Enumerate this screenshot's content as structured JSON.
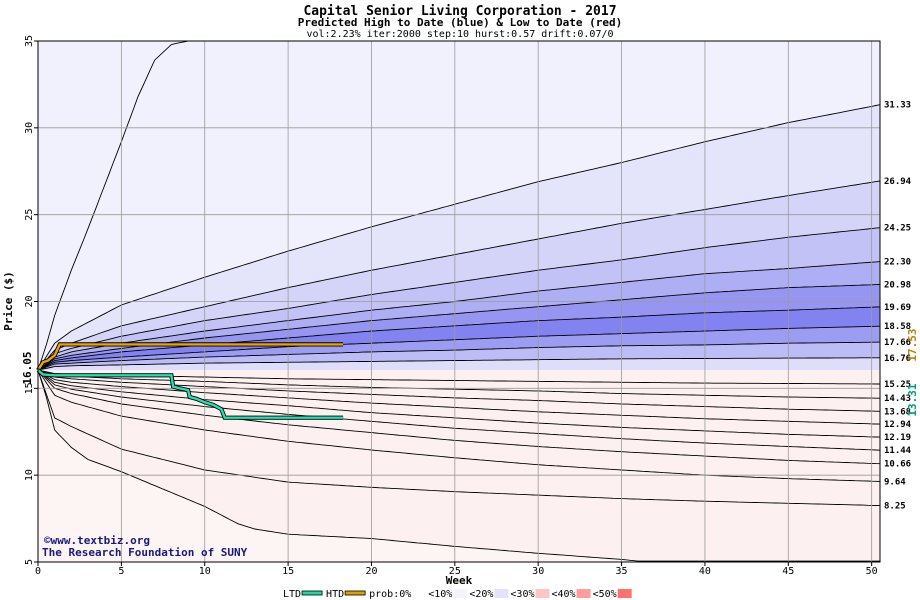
{
  "chart_data": {
    "type": "area",
    "title": "Capital Senior Living Corporation - 2017",
    "subtitle": "Predicted High to Date (blue) &  Low to Date (red)",
    "params": "vol:2.23% iter:2000 step:10 hurst:0.57 drift:0.07/0",
    "xlabel": "Week",
    "ylabel": "Price ($)",
    "xlim": [
      0,
      50.5
    ],
    "ylim": [
      5,
      35
    ],
    "x_ticks": [
      0,
      5,
      10,
      15,
      20,
      25,
      30,
      35,
      40,
      45,
      50
    ],
    "y_ticks": [
      5,
      10,
      15,
      20,
      25,
      30,
      35
    ],
    "grid": true,
    "start_price": 16.05,
    "start_label": "16.05",
    "high_label": "17.53",
    "low_label": "13.31",
    "high_color": "#b8860b",
    "low_color": "#009e80",
    "upper_curves": [
      {
        "label": "",
        "points": [
          [
            0,
            16.05
          ],
          [
            0.5,
            17.5
          ],
          [
            1,
            19.2
          ],
          [
            2,
            21.8
          ],
          [
            3,
            24.2
          ],
          [
            4,
            26.7
          ],
          [
            5,
            29.2
          ],
          [
            6,
            31.8
          ],
          [
            7,
            33.9
          ],
          [
            8,
            34.8
          ],
          [
            9,
            35
          ]
        ]
      },
      {
        "label": "31.33",
        "points": [
          [
            0,
            16.05
          ],
          [
            1,
            17.6
          ],
          [
            2,
            18.3
          ],
          [
            5,
            19.8
          ],
          [
            10,
            21.4
          ],
          [
            15,
            22.9
          ],
          [
            20,
            24.3
          ],
          [
            25,
            25.6
          ],
          [
            30,
            26.9
          ],
          [
            35,
            28.0
          ],
          [
            40,
            29.2
          ],
          [
            45,
            30.3
          ],
          [
            50.5,
            31.33
          ]
        ]
      },
      {
        "label": "26.94",
        "points": [
          [
            0,
            16.05
          ],
          [
            1,
            17.2
          ],
          [
            2,
            17.6
          ],
          [
            5,
            18.6
          ],
          [
            10,
            19.7
          ],
          [
            15,
            20.8
          ],
          [
            20,
            21.8
          ],
          [
            25,
            22.7
          ],
          [
            30,
            23.6
          ],
          [
            35,
            24.5
          ],
          [
            40,
            25.3
          ],
          [
            45,
            26.1
          ],
          [
            50.5,
            26.94
          ]
        ]
      },
      {
        "label": "24.25",
        "points": [
          [
            0,
            16.05
          ],
          [
            1,
            17.0
          ],
          [
            2,
            17.3
          ],
          [
            5,
            18.0
          ],
          [
            10,
            18.9
          ],
          [
            15,
            19.6
          ],
          [
            20,
            20.4
          ],
          [
            25,
            21.1
          ],
          [
            30,
            21.8
          ],
          [
            35,
            22.4
          ],
          [
            40,
            23.1
          ],
          [
            45,
            23.7
          ],
          [
            50.5,
            24.25
          ]
        ]
      },
      {
        "label": "22.30",
        "points": [
          [
            0,
            16.05
          ],
          [
            1,
            16.8
          ],
          [
            2,
            17.1
          ],
          [
            5,
            17.6
          ],
          [
            10,
            18.3
          ],
          [
            15,
            18.9
          ],
          [
            20,
            19.5
          ],
          [
            25,
            20.0
          ],
          [
            30,
            20.6
          ],
          [
            35,
            21.1
          ],
          [
            40,
            21.6
          ],
          [
            45,
            21.9
          ],
          [
            50.5,
            22.3
          ]
        ]
      },
      {
        "label": "20.98",
        "points": [
          [
            0,
            16.05
          ],
          [
            1,
            16.7
          ],
          [
            2,
            16.9
          ],
          [
            5,
            17.3
          ],
          [
            10,
            17.9
          ],
          [
            15,
            18.4
          ],
          [
            20,
            18.9
          ],
          [
            25,
            19.3
          ],
          [
            30,
            19.7
          ],
          [
            35,
            20.1
          ],
          [
            40,
            20.5
          ],
          [
            45,
            20.8
          ],
          [
            50.5,
            20.98
          ]
        ]
      },
      {
        "label": "19.69",
        "points": [
          [
            0,
            16.05
          ],
          [
            1,
            16.6
          ],
          [
            2,
            16.75
          ],
          [
            5,
            17.1
          ],
          [
            10,
            17.5
          ],
          [
            15,
            17.9
          ],
          [
            20,
            18.3
          ],
          [
            25,
            18.6
          ],
          [
            30,
            18.9
          ],
          [
            35,
            19.1
          ],
          [
            40,
            19.35
          ],
          [
            45,
            19.5
          ],
          [
            50.5,
            19.69
          ]
        ]
      },
      {
        "label": "18.58",
        "points": [
          [
            0,
            16.05
          ],
          [
            1,
            16.5
          ],
          [
            2,
            16.6
          ],
          [
            5,
            16.8
          ],
          [
            10,
            17.1
          ],
          [
            15,
            17.4
          ],
          [
            20,
            17.6
          ],
          [
            25,
            17.8
          ],
          [
            30,
            18.0
          ],
          [
            35,
            18.15
          ],
          [
            40,
            18.3
          ],
          [
            45,
            18.45
          ],
          [
            50.5,
            18.58
          ]
        ]
      },
      {
        "label": "17.66",
        "points": [
          [
            0,
            16.05
          ],
          [
            1,
            16.4
          ],
          [
            2,
            16.45
          ],
          [
            5,
            16.6
          ],
          [
            10,
            16.8
          ],
          [
            15,
            16.95
          ],
          [
            20,
            17.1
          ],
          [
            25,
            17.2
          ],
          [
            30,
            17.35
          ],
          [
            35,
            17.45
          ],
          [
            40,
            17.5
          ],
          [
            45,
            17.6
          ],
          [
            50.5,
            17.66
          ]
        ]
      },
      {
        "label": "16.76",
        "points": [
          [
            0,
            16.05
          ],
          [
            1,
            16.25
          ],
          [
            2,
            16.3
          ],
          [
            5,
            16.35
          ],
          [
            10,
            16.45
          ],
          [
            15,
            16.5
          ],
          [
            20,
            16.55
          ],
          [
            25,
            16.6
          ],
          [
            30,
            16.65
          ],
          [
            35,
            16.7
          ],
          [
            40,
            16.72
          ],
          [
            45,
            16.74
          ],
          [
            50.5,
            16.76
          ]
        ]
      }
    ],
    "lower_curves": [
      {
        "label": "15.25",
        "points": [
          [
            0,
            16.05
          ],
          [
            1,
            15.85
          ],
          [
            2,
            15.8
          ],
          [
            5,
            15.75
          ],
          [
            10,
            15.65
          ],
          [
            15,
            15.55
          ],
          [
            20,
            15.5
          ],
          [
            25,
            15.45
          ],
          [
            30,
            15.4
          ],
          [
            35,
            15.35
          ],
          [
            40,
            15.3
          ],
          [
            45,
            15.28
          ],
          [
            50.5,
            15.25
          ]
        ]
      },
      {
        "label": "14.43",
        "points": [
          [
            0,
            16.05
          ],
          [
            1,
            15.75
          ],
          [
            2,
            15.7
          ],
          [
            5,
            15.55
          ],
          [
            10,
            15.4
          ],
          [
            15,
            15.2
          ],
          [
            20,
            15.05
          ],
          [
            25,
            14.95
          ],
          [
            30,
            14.85
          ],
          [
            35,
            14.7
          ],
          [
            40,
            14.6
          ],
          [
            45,
            14.5
          ],
          [
            50.5,
            14.43
          ]
        ]
      },
      {
        "label": "13.68",
        "points": [
          [
            0,
            16.05
          ],
          [
            1,
            15.65
          ],
          [
            2,
            15.55
          ],
          [
            5,
            15.35
          ],
          [
            10,
            15.1
          ],
          [
            15,
            14.85
          ],
          [
            20,
            14.65
          ],
          [
            25,
            14.45
          ],
          [
            30,
            14.3
          ],
          [
            35,
            14.1
          ],
          [
            40,
            13.95
          ],
          [
            45,
            13.8
          ],
          [
            50.5,
            13.68
          ]
        ]
      },
      {
        "label": "12.94",
        "points": [
          [
            0,
            16.05
          ],
          [
            1,
            15.5
          ],
          [
            2,
            15.35
          ],
          [
            5,
            15.1
          ],
          [
            10,
            14.75
          ],
          [
            15,
            14.45
          ],
          [
            20,
            14.15
          ],
          [
            25,
            13.9
          ],
          [
            30,
            13.65
          ],
          [
            35,
            13.45
          ],
          [
            40,
            13.25
          ],
          [
            45,
            13.1
          ],
          [
            50.5,
            12.94
          ]
        ]
      },
      {
        "label": "12.19",
        "points": [
          [
            0,
            16.05
          ],
          [
            1,
            15.35
          ],
          [
            2,
            15.15
          ],
          [
            5,
            14.8
          ],
          [
            10,
            14.35
          ],
          [
            15,
            14.0
          ],
          [
            20,
            13.6
          ],
          [
            25,
            13.3
          ],
          [
            30,
            13.0
          ],
          [
            35,
            12.75
          ],
          [
            40,
            12.55
          ],
          [
            45,
            12.35
          ],
          [
            50.5,
            12.19
          ]
        ]
      },
      {
        "label": "11.44",
        "points": [
          [
            0,
            16.05
          ],
          [
            1,
            15.2
          ],
          [
            2,
            14.95
          ],
          [
            5,
            14.5
          ],
          [
            10,
            13.95
          ],
          [
            15,
            13.5
          ],
          [
            20,
            13.1
          ],
          [
            25,
            12.7
          ],
          [
            30,
            12.4
          ],
          [
            35,
            12.1
          ],
          [
            40,
            11.85
          ],
          [
            45,
            11.65
          ],
          [
            50.5,
            11.44
          ]
        ]
      },
      {
        "label": "10.66",
        "points": [
          [
            0,
            16.05
          ],
          [
            1,
            15.0
          ],
          [
            2,
            14.7
          ],
          [
            5,
            14.1
          ],
          [
            10,
            13.45
          ],
          [
            15,
            12.9
          ],
          [
            20,
            12.45
          ],
          [
            25,
            12.0
          ],
          [
            30,
            11.65
          ],
          [
            35,
            11.35
          ],
          [
            40,
            11.1
          ],
          [
            45,
            10.85
          ],
          [
            50.5,
            10.66
          ]
        ]
      },
      {
        "label": "9.64",
        "points": [
          [
            0,
            16.05
          ],
          [
            1,
            14.6
          ],
          [
            2,
            14.2
          ],
          [
            5,
            13.4
          ],
          [
            10,
            12.6
          ],
          [
            15,
            11.95
          ],
          [
            20,
            11.45
          ],
          [
            25,
            11.0
          ],
          [
            30,
            10.6
          ],
          [
            35,
            10.3
          ],
          [
            40,
            10.0
          ],
          [
            45,
            9.8
          ],
          [
            50.5,
            9.64
          ]
        ]
      },
      {
        "label": "8.25",
        "points": [
          [
            0,
            16.05
          ],
          [
            1,
            13.3
          ],
          [
            2,
            12.8
          ],
          [
            5,
            11.5
          ],
          [
            10,
            10.3
          ],
          [
            15,
            9.6
          ],
          [
            20,
            9.3
          ],
          [
            25,
            9.05
          ],
          [
            30,
            8.85
          ],
          [
            35,
            8.65
          ],
          [
            40,
            8.5
          ],
          [
            45,
            8.38
          ],
          [
            50.5,
            8.25
          ]
        ]
      },
      {
        "label": "",
        "points": [
          [
            0,
            16.05
          ],
          [
            0.5,
            14.5
          ],
          [
            1,
            12.6
          ],
          [
            2,
            11.6
          ],
          [
            3,
            10.9
          ],
          [
            5,
            10.2
          ],
          [
            8,
            9.0
          ],
          [
            10,
            8.2
          ],
          [
            12,
            7.2
          ],
          [
            13,
            6.9
          ],
          [
            15,
            6.6
          ],
          [
            20,
            6.35
          ],
          [
            25,
            5.9
          ],
          [
            30,
            5.5
          ],
          [
            35,
            5.15
          ],
          [
            36,
            5.05
          ]
        ]
      }
    ],
    "band_colors_upper": [
      "#f1f1fd",
      "#e4e4fb",
      "#d4d4f9",
      "#c2c2f7",
      "#aeaef5",
      "#9696f2",
      "#8282f0",
      "#9c9cf3",
      "#bcbcf7",
      "#dedefb"
    ],
    "band_colors_lower": [
      "#fde6e6",
      "#fbcccc",
      "#f9b3b3",
      "#f79b9b",
      "#f48080",
      "#f27070",
      "#f38888",
      "#f7aaaa",
      "#fbd0d0",
      "#fdf0f0"
    ],
    "high_to_date": [
      [
        0,
        16.05
      ],
      [
        0.3,
        16.5
      ],
      [
        0.6,
        16.6
      ],
      [
        1,
        16.9
      ],
      [
        1.3,
        17.53
      ],
      [
        18.3,
        17.53
      ]
    ],
    "low_to_date": [
      [
        0,
        16.05
      ],
      [
        0.3,
        15.8
      ],
      [
        1,
        15.75
      ],
      [
        8,
        15.75
      ],
      [
        8.1,
        15.1
      ],
      [
        8.5,
        15.0
      ],
      [
        9,
        14.9
      ],
      [
        9.1,
        14.5
      ],
      [
        9.5,
        14.4
      ],
      [
        10,
        14.2
      ],
      [
        10.5,
        14.05
      ],
      [
        11,
        13.8
      ],
      [
        11.2,
        13.31
      ],
      [
        18.3,
        13.31
      ]
    ],
    "credit_line1": "©www.textbiz.org",
    "credit_line2": "The Research Foundation of SUNY",
    "legend": [
      {
        "label": "LTD",
        "color": "#20d8a0",
        "kind": "line"
      },
      {
        "label": "HTD",
        "color": "#e0a000",
        "kind": "line"
      },
      {
        "label": "prob:0%",
        "color": "#ffffff",
        "kind": "swatch"
      },
      {
        "label": "<10%",
        "color": "#f4f4ff",
        "kind": "swatch"
      },
      {
        "label": "<20%",
        "color": "#e2e2fd",
        "kind": "swatch"
      },
      {
        "label": "<30%",
        "color": "#ffc4c4",
        "kind": "swatch"
      },
      {
        "label": "<40%",
        "color": "#ff9d9d",
        "kind": "swatch"
      },
      {
        "label": "<50%",
        "color": "#ff7070",
        "kind": "swatch"
      }
    ]
  }
}
